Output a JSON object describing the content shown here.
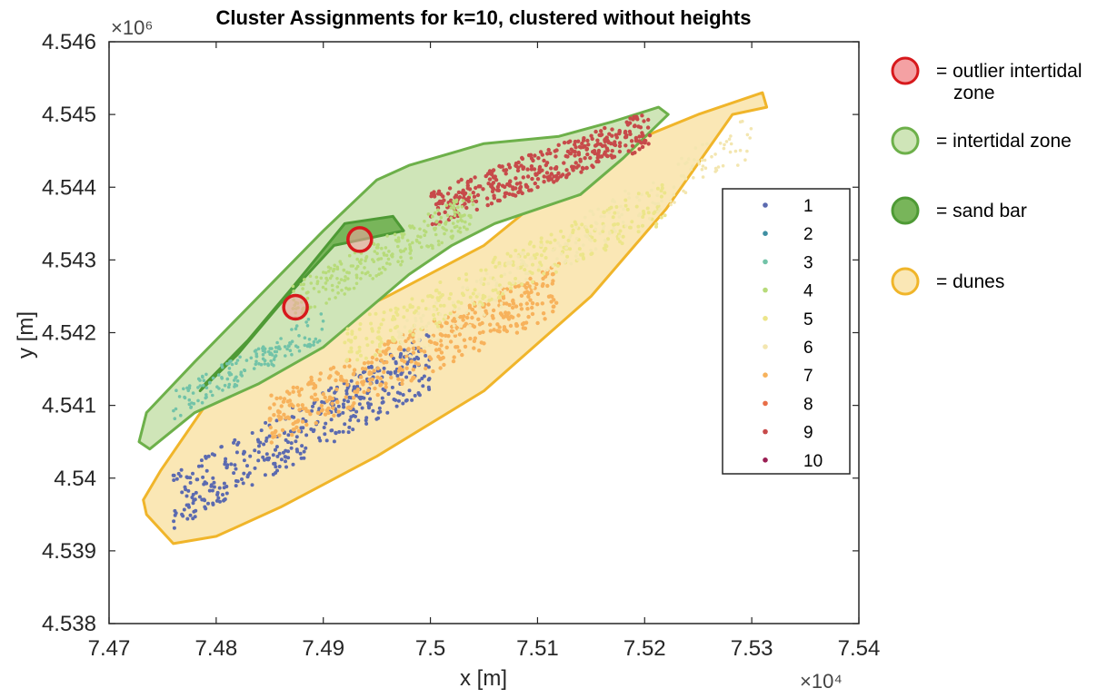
{
  "chart_data": {
    "type": "scatter",
    "title": "Cluster Assignments for k=10, clustered without heights",
    "xlabel": "x [m]",
    "ylabel": "y [m]",
    "x_exponent_label": "×10⁴",
    "y_exponent_label": "×10⁶",
    "xlim": [
      7.47,
      7.54
    ],
    "ylim": [
      4.538,
      4.546
    ],
    "xticks": [
      7.47,
      7.48,
      7.49,
      7.5,
      7.51,
      7.52,
      7.53,
      7.54
    ],
    "yticks": [
      4.538,
      4.539,
      4.54,
      4.541,
      4.542,
      4.543,
      4.544,
      4.545,
      4.546
    ],
    "legend_position": "right inside axes",
    "series": [
      {
        "name": "1",
        "color": "#5b6ab0"
      },
      {
        "name": "2",
        "color": "#3f8fa2"
      },
      {
        "name": "3",
        "color": "#72c3a8"
      },
      {
        "name": "4",
        "color": "#b7db7a"
      },
      {
        "name": "5",
        "color": "#ece58a"
      },
      {
        "name": "6",
        "color": "#f3e6b0"
      },
      {
        "name": "7",
        "color": "#f7b25c"
      },
      {
        "name": "8",
        "color": "#e86e48"
      },
      {
        "name": "9",
        "color": "#c74a4a"
      },
      {
        "name": "10",
        "color": "#9a1e52"
      }
    ],
    "regions": [
      {
        "label": "intertidal zone",
        "fill": "#cfe5b8",
        "stroke": "#6db04a",
        "polygon": [
          [
            7.4738,
            4.5404
          ],
          [
            7.478,
            4.5409
          ],
          [
            7.484,
            4.5413
          ],
          [
            7.49,
            4.5418
          ],
          [
            7.494,
            4.5423
          ],
          [
            7.498,
            4.5428
          ],
          [
            7.502,
            4.5432
          ],
          [
            7.506,
            4.5435
          ],
          [
            7.51,
            4.5437
          ],
          [
            7.514,
            4.5439
          ],
          [
            7.518,
            4.5444
          ],
          [
            7.5222,
            4.545
          ],
          [
            7.5213,
            4.5451
          ],
          [
            7.517,
            4.5449
          ],
          [
            7.512,
            4.5447
          ],
          [
            7.505,
            4.5446
          ],
          [
            7.498,
            4.5443
          ],
          [
            7.495,
            4.5441
          ],
          [
            7.49,
            4.5434
          ],
          [
            7.484,
            4.5425
          ],
          [
            7.478,
            4.5416
          ],
          [
            7.4735,
            4.5409
          ],
          [
            7.4728,
            4.5405
          ]
        ]
      },
      {
        "label": "sand bar",
        "fill": "#78b55a",
        "stroke": "#4e9a35",
        "polygon": [
          [
            7.4785,
            4.5412
          ],
          [
            7.482,
            4.5417
          ],
          [
            7.486,
            4.5424
          ],
          [
            7.491,
            4.5432
          ],
          [
            7.4975,
            4.5434
          ],
          [
            7.4965,
            4.5436
          ],
          [
            7.492,
            4.5435
          ],
          [
            7.487,
            4.5426
          ],
          [
            7.483,
            4.5419
          ],
          [
            7.479,
            4.5413
          ]
        ]
      },
      {
        "label": "dunes",
        "fill": "#fae7b5",
        "stroke": "#f0b52a",
        "polygon": [
          [
            7.4735,
            4.5395
          ],
          [
            7.476,
            4.5391
          ],
          [
            7.48,
            4.5392
          ],
          [
            7.486,
            4.5396
          ],
          [
            7.495,
            4.5403
          ],
          [
            7.505,
            4.5412
          ],
          [
            7.515,
            4.5425
          ],
          [
            7.522,
            4.5437
          ],
          [
            7.5282,
            4.545
          ],
          [
            7.5314,
            4.5451
          ],
          [
            7.531,
            4.5453
          ],
          [
            7.525,
            4.545
          ],
          [
            7.515,
            4.5444
          ],
          [
            7.505,
            4.5432
          ],
          [
            7.496,
            4.5425
          ],
          [
            7.486,
            4.5418
          ],
          [
            7.479,
            4.541
          ],
          [
            7.4748,
            4.5401
          ],
          [
            7.4732,
            4.5397
          ]
        ]
      }
    ],
    "outlier_markers": [
      {
        "x": 7.4874,
        "y": 4.54235
      },
      {
        "x": 7.4934,
        "y": 4.54328
      }
    ],
    "key_legend": [
      {
        "label": "= outlier intertidal\nzone",
        "fill": "#f4a1a3",
        "stroke": "#d7191c"
      },
      {
        "label": "= intertidal zone",
        "fill": "#cfe5b8",
        "stroke": "#6db04a"
      },
      {
        "label": "= sand bar",
        "fill": "#78b55a",
        "stroke": "#4e9a35"
      },
      {
        "label": "= dunes",
        "fill": "#fae7b5",
        "stroke": "#f0b52a"
      }
    ]
  }
}
